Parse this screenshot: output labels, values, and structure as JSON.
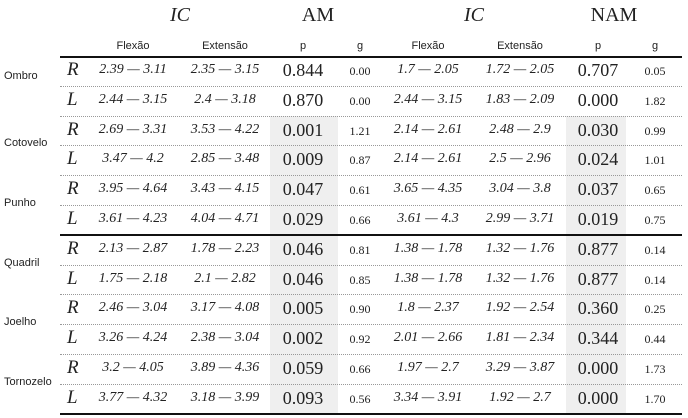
{
  "header": {
    "groups": [
      "IC",
      "AM",
      "IC",
      "NAM"
    ],
    "columns": [
      "Flexão",
      "Extensão",
      "p",
      "g",
      "Flexão",
      "Extensão",
      "p",
      "g"
    ]
  },
  "table": {
    "rows": [
      {
        "joint": "Ombro",
        "sides": [
          {
            "side": "R",
            "cells": [
              "2.39 — 3.11",
              "2.35 — 3.15",
              "0.844",
              "0.00",
              "1.7 — 2.05",
              "1.72 — 2.05",
              "0.707",
              "0.05"
            ]
          },
          {
            "side": "L",
            "cells": [
              "2.44 — 3.15",
              "2.4 — 3.18",
              "0.870",
              "0.00",
              "2.44 — 3.15",
              "1.83 — 2.09",
              "0.000",
              "1.82"
            ]
          }
        ]
      },
      {
        "joint": "Cotovelo",
        "sides": [
          {
            "side": "R",
            "cells": [
              "2.69 — 3.31",
              "3.53 — 4.22",
              "0.001",
              "1.21",
              "2.14 — 2.61",
              "2.48 — 2.9",
              "0.030",
              "0.99"
            ]
          },
          {
            "side": "L",
            "cells": [
              "3.47 — 4.2",
              "2.85 — 3.48",
              "0.009",
              "0.87",
              "2.14 — 2.61",
              "2.5 — 2.96",
              "0.024",
              "1.01"
            ]
          }
        ]
      },
      {
        "joint": "Punho",
        "sides": [
          {
            "side": "R",
            "cells": [
              "3.95 — 4.64",
              "3.43 — 4.15",
              "0.047",
              "0.61",
              "3.65 — 4.35",
              "3.04 — 3.8",
              "0.037",
              "0.65"
            ]
          },
          {
            "side": "L",
            "cells": [
              "3.61 — 4.23",
              "4.04 — 4.71",
              "0.029",
              "0.66",
              "3.61 — 4.3",
              "2.99 — 3.71",
              "0.019",
              "0.75"
            ]
          }
        ]
      },
      {
        "joint": "Quadril",
        "sides": [
          {
            "side": "R",
            "cells": [
              "2.13 — 2.87",
              "1.78 — 2.23",
              "0.046",
              "0.81",
              "1.38 — 1.78",
              "1.32 — 1.76",
              "0.877",
              "0.14"
            ]
          },
          {
            "side": "L",
            "cells": [
              "1.75 — 2.18",
              "2.1 — 2.82",
              "0.046",
              "0.85",
              "1.38 — 1.78",
              "1.32 — 1.76",
              "0.877",
              "0.14"
            ]
          }
        ]
      },
      {
        "joint": "Joelho",
        "sides": [
          {
            "side": "R",
            "cells": [
              "2.46 — 3.04",
              "3.17 — 4.08",
              "0.005",
              "0.90",
              "1.8 — 2.37",
              "1.92 — 2.54",
              "0.360",
              "0.25"
            ]
          },
          {
            "side": "L",
            "cells": [
              "3.26 — 4.24",
              "2.38 — 3.04",
              "0.002",
              "0.92",
              "2.01 — 2.66",
              "1.81 — 2.34",
              "0.344",
              "0.44"
            ]
          }
        ]
      },
      {
        "joint": "Tornozelo",
        "sides": [
          {
            "side": "R",
            "cells": [
              "3.2 — 4.05",
              "3.89 — 4.36",
              "0.059",
              "0.66",
              "1.97 — 2.7",
              "3.29 — 3.87",
              "0.000",
              "1.73"
            ]
          },
          {
            "side": "L",
            "cells": [
              "3.77 — 4.32",
              "3.18 — 3.99",
              "0.093",
              "0.56",
              "3.34 — 3.91",
              "1.92 — 2.7",
              "0.000",
              "1.70"
            ]
          }
        ]
      }
    ]
  }
}
